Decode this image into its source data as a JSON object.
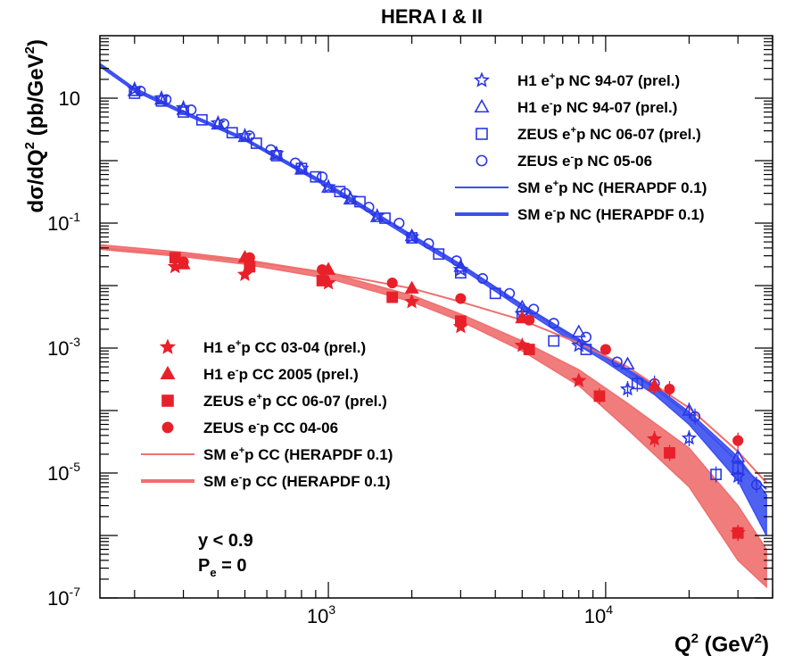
{
  "chart_data": {
    "type": "scatter",
    "title": "HERA I & II",
    "xlabel": "Q² (GeV²)",
    "ylabel": "dσ/dQ² (pb/GeV²)",
    "xscale": "log",
    "yscale": "log",
    "xlim": [
      150,
      40000
    ],
    "ylim": [
      1e-07,
      100
    ],
    "x_tick_labels": [
      {
        "value": 1000,
        "base": "10",
        "exp": "3"
      },
      {
        "value": 10000,
        "base": "10",
        "exp": "4"
      }
    ],
    "y_tick_labels": [
      {
        "value": 10,
        "base": "10",
        "exp": ""
      },
      {
        "value": 0.1,
        "base": "10",
        "exp": "-1"
      },
      {
        "value": 0.001,
        "base": "10",
        "exp": "-3"
      },
      {
        "value": 1e-05,
        "base": "10",
        "exp": "-5"
      },
      {
        "value": 1e-07,
        "base": "10",
        "exp": "-7"
      }
    ],
    "annotations": [
      {
        "base": "y < 0.9",
        "sub": ""
      },
      {
        "base": "P",
        "sub": "e",
        "rest": " = 0"
      }
    ],
    "legend_nc_position": "top-right",
    "legend_cc_position": "bottom-left",
    "colors": {
      "nc": "#2a36e6",
      "cc": "#e8202a",
      "nc_band": "#3c50f0",
      "cc_band": "#f06e6e"
    },
    "series": [
      {
        "group": "nc",
        "kind": "points",
        "name": "H1 e",
        "sup": "+",
        "rest": "p NC 94-07 (prel.)",
        "marker": "star-open",
        "x": [
          200,
          250,
          300,
          400,
          500,
          650,
          800,
          1000,
          1200,
          1500,
          2000,
          3000,
          5000,
          8000,
          12000,
          20000,
          30000
        ],
        "y": [
          14,
          10,
          7,
          4,
          2.5,
          1.3,
          0.75,
          0.38,
          0.25,
          0.13,
          0.06,
          0.018,
          0.0035,
          0.0011,
          0.00022,
          3.6e-05,
          8.8e-06
        ]
      },
      {
        "group": "nc",
        "kind": "points",
        "name": "H1 e",
        "sup": "-",
        "rest": "p NC 94-07 (prel.)",
        "marker": "triangle-open",
        "x": [
          200,
          250,
          300,
          400,
          500,
          650,
          800,
          1000,
          1200,
          1500,
          2000,
          3000,
          5000,
          8000,
          12000,
          20000,
          30000
        ],
        "y": [
          13,
          9.5,
          6.5,
          3.8,
          2.4,
          1.25,
          0.72,
          0.37,
          0.24,
          0.125,
          0.062,
          0.02,
          0.0045,
          0.0018,
          0.00055,
          0.0001,
          1.8e-05
        ]
      },
      {
        "group": "nc",
        "kind": "points",
        "name": "ZEUS e",
        "sup": "+",
        "rest": "p NC 06-07 (prel.)",
        "marker": "square-open",
        "x": [
          200,
          250,
          300,
          350,
          450,
          550,
          650,
          800,
          900,
          1100,
          1300,
          1600,
          2000,
          2500,
          3000,
          4000,
          5000,
          6500,
          8500,
          13000,
          25000,
          30000
        ],
        "y": [
          12,
          9,
          6,
          4.5,
          2.8,
          1.9,
          1.2,
          0.75,
          0.55,
          0.32,
          0.22,
          0.12,
          0.058,
          0.032,
          0.016,
          0.0075,
          0.0032,
          0.0013,
          0.00095,
          0.00027,
          9.5e-06,
          1.2e-05
        ]
      },
      {
        "group": "nc",
        "kind": "points",
        "name": "ZEUS e",
        "sup": "-",
        "rest": "p NC 05-06",
        "marker": "circle-open",
        "x": [
          210,
          260,
          320,
          420,
          520,
          620,
          760,
          950,
          1150,
          1400,
          1800,
          2300,
          2900,
          3600,
          4500,
          5500,
          6500,
          8500,
          11000,
          15000,
          21000,
          35000
        ],
        "y": [
          13,
          9.5,
          6.5,
          3.9,
          2.5,
          1.5,
          0.92,
          0.55,
          0.3,
          0.18,
          0.1,
          0.047,
          0.025,
          0.013,
          0.0075,
          0.0042,
          0.0025,
          0.0015,
          0.0006,
          0.00027,
          8e-05,
          6.5e-06
        ]
      },
      {
        "group": "nc",
        "kind": "curve",
        "name": "SM e",
        "sup": "+",
        "rest": "p NC (HERAPDF 0.1)",
        "style": "thin",
        "x": [
          150,
          200,
          300,
          500,
          1000,
          2000,
          3000,
          5000,
          8000,
          10000,
          15000,
          20000,
          30000,
          38000
        ],
        "y": [
          35,
          14,
          6,
          2.2,
          0.4,
          0.062,
          0.021,
          0.0048,
          0.0013,
          0.0007,
          0.00023,
          8.5e-05,
          1.5e-05,
          5.5e-06
        ]
      },
      {
        "group": "nc",
        "kind": "band",
        "name": "SM e",
        "sup": "-",
        "rest": "p NC (HERAPDF 0.1)",
        "x": [
          150,
          200,
          300,
          500,
          1000,
          2000,
          3000,
          5000,
          8000,
          10000,
          15000,
          20000,
          30000,
          38000
        ],
        "y_high": [
          36,
          14.5,
          6.2,
          2.3,
          0.42,
          0.065,
          0.022,
          0.005,
          0.0014,
          0.00075,
          0.00025,
          9.5e-05,
          1.8e-05,
          4.5e-06
        ],
        "y_low": [
          32,
          13,
          5.6,
          2.1,
          0.37,
          0.056,
          0.019,
          0.0042,
          0.0011,
          0.0006,
          0.00018,
          6e-05,
          7.5e-06,
          1e-06
        ]
      },
      {
        "group": "cc",
        "kind": "points",
        "name": "H1 e",
        "sup": "+",
        "rest": "p CC 03-04 (prel.)",
        "marker": "star-filled",
        "x": [
          280,
          500,
          1000,
          2000,
          3000,
          5000,
          8000,
          15000,
          30000
        ],
        "y": [
          0.02,
          0.015,
          0.011,
          0.0055,
          0.0022,
          0.0011,
          0.0003,
          3.5e-05,
          1.1e-06
        ]
      },
      {
        "group": "cc",
        "kind": "points",
        "name": "H1 e",
        "sup": "-",
        "rest": "p CC 2005 (prel.)",
        "marker": "triangle-filled",
        "x": [
          300,
          500,
          1000,
          2000,
          5000,
          15000
        ],
        "y": [
          0.022,
          0.028,
          0.018,
          0.009,
          0.003,
          0.00025
        ]
      },
      {
        "group": "cc",
        "kind": "points",
        "name": "ZEUS e",
        "sup": "+",
        "rest": "p CC 06-07 (prel.)",
        "marker": "square-filled",
        "x": [
          280,
          520,
          950,
          1700,
          3000,
          5300,
          9500,
          17000,
          30000
        ],
        "y": [
          0.028,
          0.02,
          0.012,
          0.0065,
          0.0027,
          0.00095,
          0.00017,
          2.1e-05,
          1.1e-06
        ]
      },
      {
        "group": "cc",
        "kind": "points",
        "name": "ZEUS e",
        "sup": "-",
        "rest": "p CC 04-06",
        "marker": "circle-filled",
        "x": [
          300,
          520,
          950,
          1700,
          3000,
          5300,
          10000,
          17000,
          30000
        ],
        "y": [
          0.024,
          0.028,
          0.018,
          0.011,
          0.0062,
          0.0028,
          0.00095,
          0.00022,
          3.3e-05
        ]
      },
      {
        "group": "cc",
        "kind": "curve",
        "name": "SM e",
        "sup": "+",
        "rest": "p CC (HERAPDF 0.1)",
        "style": "thin",
        "x": [
          150,
          300,
          500,
          1000,
          2000,
          3000,
          5000,
          8000,
          12000,
          20000,
          30000,
          38000
        ],
        "y": [
          0.04,
          0.031,
          0.025,
          0.016,
          0.009,
          0.0055,
          0.0028,
          0.0012,
          0.0005,
          0.00011,
          2.2e-05,
          7e-06
        ]
      },
      {
        "group": "cc",
        "kind": "band",
        "name": "SM e",
        "sup": "-",
        "rest": "p CC (HERAPDF 0.1)",
        "x": [
          150,
          300,
          500,
          1000,
          2000,
          3000,
          5000,
          8000,
          12000,
          20000,
          30000,
          38000
        ],
        "y_high": [
          0.045,
          0.034,
          0.026,
          0.016,
          0.007,
          0.0035,
          0.0013,
          0.00045,
          0.00013,
          2.5e-05,
          3e-06,
          6e-07
        ],
        "y_low": [
          0.038,
          0.029,
          0.022,
          0.013,
          0.0055,
          0.0027,
          0.0009,
          0.00025,
          5e-05,
          6e-06,
          4e-07,
          1.5e-07
        ]
      }
    ]
  }
}
